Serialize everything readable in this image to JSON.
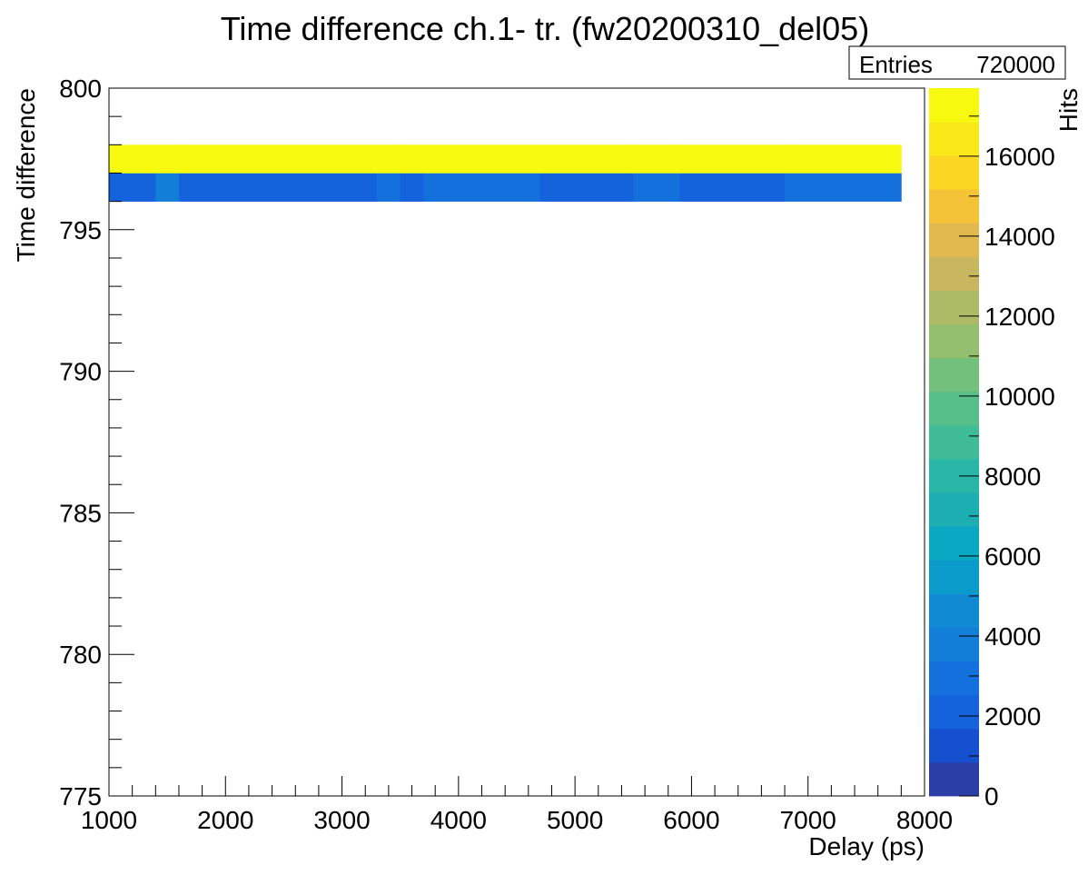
{
  "chart_data": {
    "type": "heatmap",
    "title": "Time difference ch.1- tr. (fw20200310_del05)",
    "xlabel": "Delay (ps)",
    "ylabel": "Time difference",
    "zlabel": "Hits",
    "stats": {
      "label": "Entries",
      "value": "720000"
    },
    "xlim": [
      1000,
      8000
    ],
    "ylim": [
      775,
      800
    ],
    "zlim": [
      0,
      17700
    ],
    "x_ticks": [
      1000,
      2000,
      3000,
      4000,
      5000,
      6000,
      7000,
      8000
    ],
    "x_tick_labels": [
      "1000",
      "2000",
      "3000",
      "4000",
      "5000",
      "6000",
      "7000",
      "8000"
    ],
    "y_ticks": [
      775,
      780,
      785,
      790,
      795,
      800
    ],
    "y_tick_labels": [
      "775",
      "780",
      "785",
      "790",
      "795",
      "800"
    ],
    "z_ticks": [
      0,
      2000,
      4000,
      6000,
      8000,
      10000,
      12000,
      14000,
      16000
    ],
    "z_tick_labels": [
      "0",
      "2000",
      "4000",
      "6000",
      "8000",
      "10000",
      "12000",
      "14000",
      "16000"
    ],
    "grid": false,
    "palette": [
      "#2b3ea8",
      "#1650cf",
      "#1463dc",
      "#1470dc",
      "#127ed8",
      "#108ad3",
      "#0b9bca",
      "#0aa8c2",
      "#1caeb2",
      "#2ab6a6",
      "#3fbb98",
      "#56bf8a",
      "#73bf7c",
      "#93bf6e",
      "#adbb66",
      "#c9b760",
      "#e2b94f",
      "#f4c338",
      "#fbd623",
      "#fbe818",
      "#f7fa0f"
    ],
    "cells": {
      "y_bins": [
        [
          796,
          797
        ],
        [
          797,
          798
        ]
      ],
      "x_edges": [
        1000,
        1400,
        1600,
        3300,
        3500,
        3700,
        4700,
        5500,
        5900,
        6800,
        7800
      ],
      "values": [
        [
          2500,
          3400,
          2400,
          3300,
          2400,
          3200,
          2400,
          3300,
          2400,
          3200
        ],
        [
          17000,
          17000,
          17000,
          17000,
          17000,
          17000,
          17000,
          17000,
          17000,
          17000
        ]
      ]
    }
  }
}
